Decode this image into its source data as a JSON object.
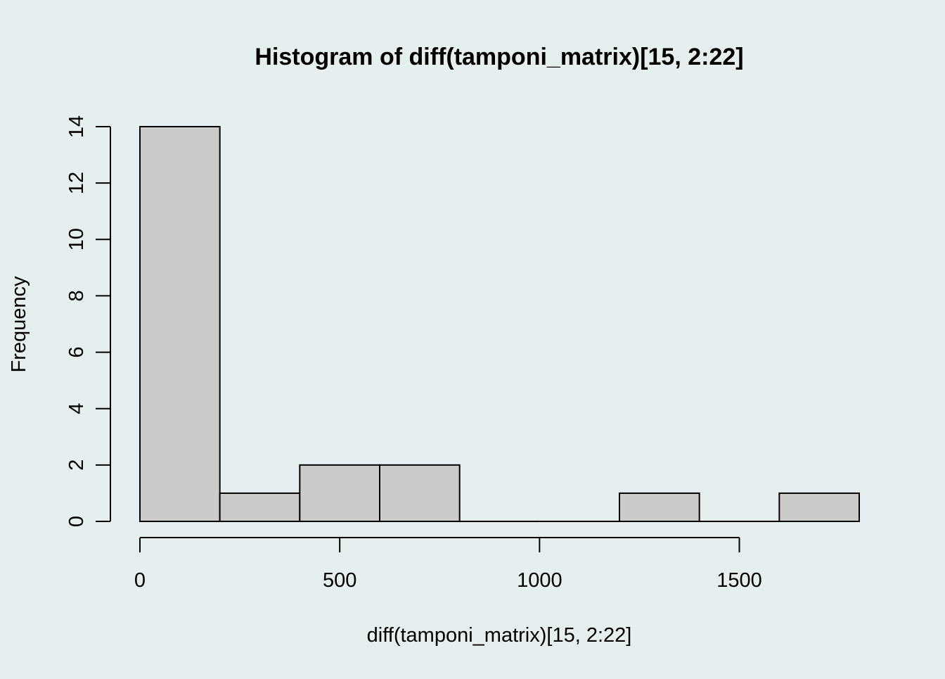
{
  "chart_data": {
    "type": "bar",
    "title": "Histogram of diff(tamponi_matrix)[15, 2:22]",
    "xlabel": "diff(tamponi_matrix)[15, 2:22]",
    "ylabel": "Frequency",
    "bins": [
      {
        "from": 0,
        "to": 200,
        "count": 14
      },
      {
        "from": 200,
        "to": 400,
        "count": 1
      },
      {
        "from": 400,
        "to": 600,
        "count": 2
      },
      {
        "from": 600,
        "to": 800,
        "count": 2
      },
      {
        "from": 800,
        "to": 1000,
        "count": 0
      },
      {
        "from": 1000,
        "to": 1200,
        "count": 0
      },
      {
        "from": 1200,
        "to": 1400,
        "count": 1
      },
      {
        "from": 1400,
        "to": 1600,
        "count": 0
      },
      {
        "from": 1600,
        "to": 1800,
        "count": 1
      }
    ],
    "x_ticks": [
      0,
      500,
      1000,
      1500
    ],
    "x_tick_labels": [
      "0",
      "500",
      "1000",
      "1500"
    ],
    "y_ticks": [
      0,
      2,
      4,
      6,
      8,
      10,
      12,
      14
    ],
    "y_tick_labels": [
      "0",
      "2",
      "4",
      "6",
      "8",
      "10",
      "12",
      "14"
    ],
    "xlim": [
      0,
      1800
    ],
    "ylim": [
      0,
      14
    ],
    "grid": false,
    "legend": "none",
    "colors": {
      "background": "#e6efef",
      "bar_fill": "#cbcbcb",
      "bar_stroke": "#000000"
    }
  }
}
